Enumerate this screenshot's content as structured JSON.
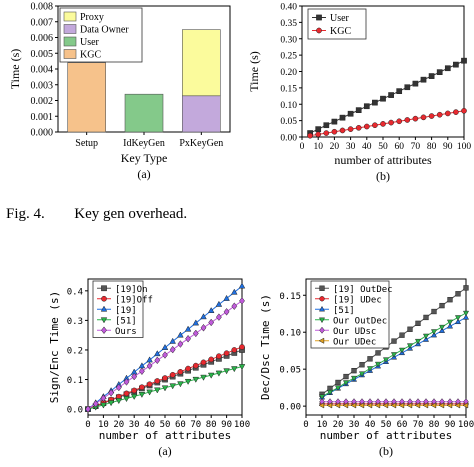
{
  "figure_caption": {
    "label": "Fig. 4.",
    "text": "Key gen overhead."
  },
  "chart_data": [
    {
      "id": "top-left",
      "type": "bar",
      "stacked": true,
      "panel_label": "(a)",
      "xlabel": "Key Type",
      "ylabel": "Time (s)",
      "ylim": [
        0,
        0.008
      ],
      "yticks": [
        "0.000",
        "0.001",
        "0.002",
        "0.003",
        "0.004",
        "0.005",
        "0.006",
        "0.007",
        "0.008"
      ],
      "categories": [
        "Setup",
        "IdKeyGen",
        "PxKeyGen"
      ],
      "legend": [
        "Proxy",
        "Data Owner",
        "User",
        "KGC"
      ],
      "legend_position": "top-left",
      "series": [
        {
          "name": "KGC",
          "values": [
            0.0044,
            0,
            0
          ],
          "color": "#f6c28b"
        },
        {
          "name": "User",
          "values": [
            0,
            0.0024,
            0
          ],
          "color": "#84c98a"
        },
        {
          "name": "Data Owner",
          "values": [
            0,
            0,
            0.0023
          ],
          "color": "#c3a9dc"
        },
        {
          "name": "Proxy",
          "values": [
            0,
            0,
            0.0042
          ],
          "color": "#fbfb9c"
        }
      ]
    },
    {
      "id": "top-right",
      "type": "line",
      "panel_label": "(b)",
      "xlabel": "number of attributes",
      "ylabel": "Time (s)",
      "xlim": [
        0,
        100
      ],
      "ylim": [
        0,
        0.4
      ],
      "xticks": [
        "0",
        "10",
        "20",
        "30",
        "40",
        "50",
        "60",
        "70",
        "80",
        "90",
        "100"
      ],
      "yticks": [
        "0.00",
        "0.05",
        "0.10",
        "0.15",
        "0.20",
        "0.25",
        "0.30",
        "0.35",
        "0.40"
      ],
      "legend_position": "top-left",
      "x": [
        5,
        10,
        15,
        20,
        25,
        30,
        35,
        40,
        45,
        50,
        55,
        60,
        65,
        70,
        75,
        80,
        85,
        90,
        95,
        100
      ],
      "series": [
        {
          "name": "User",
          "marker": "square",
          "color": "#333333",
          "values": [
            0.012,
            0.024,
            0.036,
            0.047,
            0.059,
            0.071,
            0.082,
            0.094,
            0.105,
            0.117,
            0.128,
            0.14,
            0.152,
            0.163,
            0.175,
            0.186,
            0.198,
            0.21,
            0.221,
            0.233
          ]
        },
        {
          "name": "KGC",
          "marker": "circle",
          "color": "#e8292f",
          "values": [
            0.004,
            0.008,
            0.012,
            0.016,
            0.02,
            0.024,
            0.028,
            0.032,
            0.036,
            0.04,
            0.044,
            0.048,
            0.052,
            0.056,
            0.06,
            0.064,
            0.068,
            0.072,
            0.076,
            0.08
          ]
        }
      ]
    },
    {
      "id": "bottom-left",
      "type": "line",
      "panel_label": "(a)",
      "xlabel": "number of attributes",
      "ylabel": "Sign/Enc Time (s)",
      "xlim": [
        0,
        100
      ],
      "ylim": [
        -0.02,
        0.44
      ],
      "xticks": [
        "0",
        "10",
        "20",
        "30",
        "40",
        "50",
        "60",
        "70",
        "80",
        "90",
        "100"
      ],
      "yticks": [
        "0.0",
        "0.1",
        "0.2",
        "0.3",
        "0.4"
      ],
      "legend_position": "top-left",
      "x": [
        0,
        5,
        10,
        15,
        20,
        25,
        30,
        35,
        40,
        45,
        50,
        55,
        60,
        65,
        70,
        75,
        80,
        85,
        90,
        95,
        100
      ],
      "series": [
        {
          "name": "[19]On",
          "marker": "square",
          "color": "#555555",
          "values": [
            0.0,
            0.01,
            0.02,
            0.03,
            0.04,
            0.05,
            0.06,
            0.07,
            0.08,
            0.09,
            0.1,
            0.11,
            0.12,
            0.13,
            0.14,
            0.15,
            0.16,
            0.17,
            0.18,
            0.19,
            0.2
          ]
        },
        {
          "name": "[19]Off",
          "marker": "circle",
          "color": "#e8292f",
          "values": [
            0.0,
            0.011,
            0.021,
            0.032,
            0.042,
            0.053,
            0.063,
            0.074,
            0.084,
            0.095,
            0.105,
            0.116,
            0.126,
            0.137,
            0.147,
            0.158,
            0.168,
            0.179,
            0.189,
            0.2,
            0.21
          ]
        },
        {
          "name": "[19]",
          "marker": "triangle-up",
          "color": "#1f6fe0",
          "values": [
            0.0,
            0.021,
            0.042,
            0.062,
            0.083,
            0.104,
            0.125,
            0.146,
            0.166,
            0.187,
            0.208,
            0.229,
            0.25,
            0.27,
            0.291,
            0.312,
            0.333,
            0.354,
            0.374,
            0.395,
            0.416
          ]
        },
        {
          "name": "[51]",
          "marker": "triangle-down",
          "color": "#2ab34a",
          "values": [
            0.0,
            0.007,
            0.014,
            0.022,
            0.029,
            0.036,
            0.043,
            0.05,
            0.058,
            0.065,
            0.072,
            0.079,
            0.086,
            0.094,
            0.101,
            0.108,
            0.115,
            0.122,
            0.13,
            0.137,
            0.144
          ]
        },
        {
          "name": "Ours",
          "marker": "diamond",
          "color": "#c15adb",
          "values": [
            0.0,
            0.018,
            0.037,
            0.055,
            0.073,
            0.092,
            0.11,
            0.128,
            0.146,
            0.165,
            0.183,
            0.201,
            0.22,
            0.238,
            0.256,
            0.275,
            0.293,
            0.311,
            0.329,
            0.348,
            0.366
          ]
        }
      ]
    },
    {
      "id": "bottom-right",
      "type": "line",
      "panel_label": "(b)",
      "xlabel": "number of attributes",
      "ylabel": "Dec/Dsc Time (s)",
      "xlim": [
        0,
        100
      ],
      "ylim": [
        -0.012,
        0.172
      ],
      "xticks": [
        "0",
        "10",
        "20",
        "30",
        "40",
        "50",
        "60",
        "70",
        "80",
        "90",
        "100"
      ],
      "yticks": [
        "0.00",
        "0.05",
        "0.10",
        "0.15"
      ],
      "legend_position": "top-left",
      "x": [
        10,
        15,
        20,
        25,
        30,
        35,
        40,
        45,
        50,
        55,
        60,
        65,
        70,
        75,
        80,
        85,
        90,
        95,
        100
      ],
      "series": [
        {
          "name": "[19] OutDec",
          "marker": "square",
          "color": "#555555",
          "values": [
            0.016,
            0.024,
            0.032,
            0.04,
            0.048,
            0.056,
            0.064,
            0.072,
            0.08,
            0.088,
            0.096,
            0.104,
            0.112,
            0.12,
            0.128,
            0.136,
            0.144,
            0.152,
            0.16
          ]
        },
        {
          "name": "[19] UDec",
          "marker": "circle",
          "color": "#e8292f",
          "values": [
            0.003,
            0.003,
            0.003,
            0.003,
            0.003,
            0.003,
            0.003,
            0.003,
            0.003,
            0.003,
            0.003,
            0.003,
            0.003,
            0.003,
            0.003,
            0.003,
            0.003,
            0.003,
            0.003
          ]
        },
        {
          "name": "[51]",
          "marker": "triangle-up",
          "color": "#1f6fe0",
          "values": [
            0.012,
            0.018,
            0.024,
            0.03,
            0.036,
            0.042,
            0.048,
            0.054,
            0.06,
            0.066,
            0.072,
            0.078,
            0.084,
            0.09,
            0.096,
            0.102,
            0.108,
            0.114,
            0.12
          ]
        },
        {
          "name": "Our OutDec",
          "marker": "triangle-down",
          "color": "#2ab34a",
          "values": [
            0.013,
            0.019,
            0.025,
            0.032,
            0.038,
            0.044,
            0.051,
            0.057,
            0.063,
            0.07,
            0.076,
            0.082,
            0.088,
            0.095,
            0.101,
            0.107,
            0.114,
            0.12,
            0.126
          ]
        },
        {
          "name": "Our UDsc",
          "marker": "diamond",
          "color": "#c15adb",
          "values": [
            0.006,
            0.006,
            0.006,
            0.006,
            0.006,
            0.006,
            0.006,
            0.006,
            0.006,
            0.006,
            0.006,
            0.006,
            0.006,
            0.006,
            0.006,
            0.006,
            0.006,
            0.006,
            0.006
          ]
        },
        {
          "name": "Our UDec",
          "marker": "triangle-left",
          "color": "#e0a020",
          "values": [
            0.001,
            0.001,
            0.001,
            0.001,
            0.001,
            0.001,
            0.001,
            0.001,
            0.001,
            0.001,
            0.001,
            0.001,
            0.001,
            0.001,
            0.001,
            0.001,
            0.001,
            0.001,
            0.001
          ]
        }
      ]
    }
  ]
}
